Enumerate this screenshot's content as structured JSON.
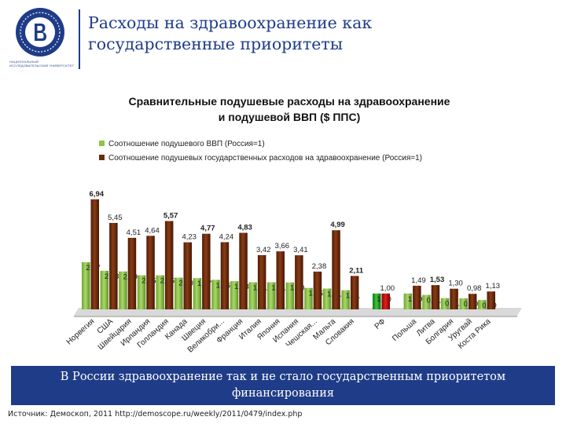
{
  "header": {
    "title_line1": "Расходы на здравоохранение как",
    "title_line2": "государственные приоритеты",
    "logo_text": "НАЦИОНАЛЬНЫЙ ИССЛЕДОВАТЕЛЬСКИЙ УНИВЕРСИТЕТ"
  },
  "banner": {
    "text": "В России здравоохранение так и не стало государственным приоритетом финансирования"
  },
  "source": {
    "text": "Источник: Демоскоп, 2011 http://demoscope.ru/weekly/2011/0479/index.php"
  },
  "colors": {
    "accent": "#1f3c88",
    "green": "#8dc63f",
    "brown": "#6b2a0e",
    "russia_green": "#1ea01e",
    "russia_red": "#c00000"
  },
  "chart_data": {
    "type": "bar",
    "title_line1": "Сравнительные подушевые расходы на здравоохранение",
    "title_line2": "и  подушевой ВВП  ($ ППС)",
    "categories": [
      "Норвегия",
      "США",
      "Швейцария",
      "Ирландия",
      "Голландия",
      "Канада",
      "Швеция",
      "Великобри...",
      "Франция",
      "Италия",
      "Япония",
      "Испания",
      "Чешская...",
      "Мальта",
      "Словакия",
      "РФ",
      "Польша",
      "Литва",
      "Болгария",
      "Уругвай",
      "Коста Рика"
    ],
    "gap_after_index": [
      14,
      15
    ],
    "series": [
      {
        "name": "Соотношение подушевого ВВП (Россия=1)",
        "color": "#8dc63f",
        "values": [
          2.97,
          2.43,
          2.39,
          2.15,
          2.15,
          2.0,
          1.97,
          1.86,
          1.78,
          1.71,
          1.71,
          1.7,
          1.35,
          1.31,
          1.21,
          1.0,
          1.0,
          0.91,
          0.71,
          0.7,
          0.59
        ],
        "labels": [
          "2,97",
          "2,43",
          "2,39",
          "2,15",
          "2,15",
          "2,00",
          "1,97",
          "1,86",
          "1,78",
          "1,71",
          "1,71",
          "1,70",
          "1,35",
          "1,31",
          "1,21",
          "1,00",
          "1,00",
          "0,91",
          "0,71",
          "0,70",
          "0,59"
        ]
      },
      {
        "name": "Соотношение подушевых государственных расходов на здравоохранение (Россия=1)",
        "color": "#6b2a0e",
        "values": [
          6.94,
          5.45,
          4.51,
          4.64,
          5.57,
          4.23,
          4.77,
          4.24,
          4.83,
          3.42,
          3.66,
          3.41,
          2.38,
          4.99,
          2.11,
          1.0,
          1.49,
          1.53,
          1.3,
          0.98,
          1.13
        ],
        "labels": [
          "6,94",
          "5,45",
          "4,51",
          "4,64",
          "5,57",
          "4,23",
          "4,77",
          "4,24",
          "4,83",
          "3,42",
          "3,66",
          "3,41",
          "2,38",
          "4,99",
          "2,11",
          "1,00",
          "1,49",
          "1,53",
          "1,30",
          "0,98",
          "1,13"
        ]
      }
    ],
    "highlight_category": "РФ",
    "ylim": [
      0,
      7.5
    ],
    "legend_position": "top-left",
    "grid": false
  }
}
